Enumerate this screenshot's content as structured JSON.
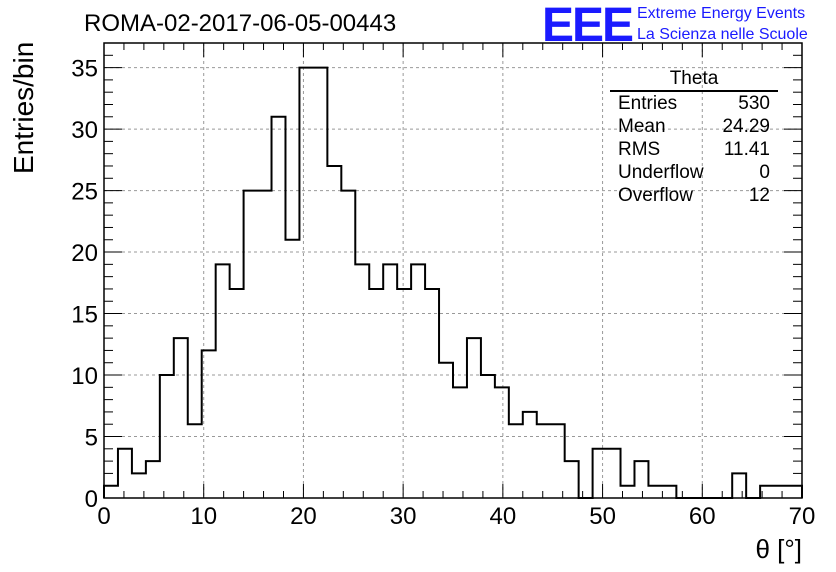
{
  "title": "ROMA-02-2017-06-05-00443",
  "logo": {
    "mark": "EEE",
    "line1": "Extreme Energy Events",
    "line2": "La Scienza nelle Scuole",
    "color": "#1a1aff"
  },
  "stats": {
    "title": "Theta",
    "rows": [
      {
        "label": "Entries",
        "value": "530"
      },
      {
        "label": "Mean",
        "value": "24.29"
      },
      {
        "label": "RMS",
        "value": "11.41"
      },
      {
        "label": "Underflow",
        "value": "0"
      },
      {
        "label": "Overflow",
        "value": "12"
      }
    ]
  },
  "chart_data": {
    "type": "bar",
    "style": "step-histogram",
    "xlabel": "θ [°]",
    "ylabel": "Entries/bin",
    "xlim": [
      0,
      70
    ],
    "ylim": [
      0,
      37
    ],
    "bin_width": 1.4,
    "bin_edges_start": 0,
    "xticks": [
      0,
      10,
      20,
      30,
      40,
      50,
      60,
      70
    ],
    "yticks": [
      0,
      5,
      10,
      15,
      20,
      25,
      30,
      35
    ],
    "grid": true,
    "values": [
      1,
      4,
      2,
      3,
      10,
      13,
      6,
      12,
      19,
      17,
      25,
      25,
      31,
      21,
      35,
      35,
      27,
      25,
      19,
      17,
      19,
      17,
      19,
      17,
      11,
      9,
      13,
      10,
      9,
      6,
      7,
      6,
      6,
      3,
      0,
      4,
      4,
      1,
      3,
      1,
      1,
      0,
      0,
      0,
      0,
      2,
      0,
      1,
      1,
      1
    ]
  }
}
